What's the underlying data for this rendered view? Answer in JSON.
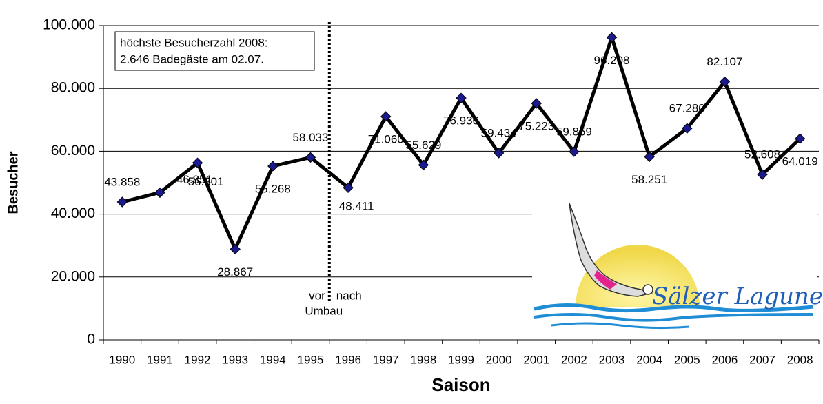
{
  "chart_data": {
    "type": "line",
    "x_label": "Saison",
    "y_label": "Besucher",
    "categories": [
      "1990",
      "1991",
      "1992",
      "1993",
      "1994",
      "1995",
      "1996",
      "1997",
      "1998",
      "1999",
      "2000",
      "2001",
      "2002",
      "2003",
      "2004",
      "2005",
      "2006",
      "2007",
      "2008"
    ],
    "series": [
      {
        "color": "#000000",
        "marker_color": "#1a1a8c",
        "values": [
          43858,
          46851,
          56301,
          28867,
          55268,
          58033,
          48411,
          71060,
          55629,
          76936,
          59434,
          75223,
          59859,
          96208,
          58251,
          67280,
          82107,
          52608,
          64019
        ],
        "value_labels": [
          "43.858",
          "46.851",
          "56.301",
          "28.867",
          "55.268",
          "58.033",
          "48.411",
          "71.060",
          "55.629",
          "76.936",
          "59.434",
          "75.223",
          "59.859",
          "96.208",
          "58.251",
          "67.280",
          "82.107",
          "52.608",
          "64.019"
        ]
      }
    ],
    "ylim": [
      0,
      100000
    ],
    "yticks": [
      0,
      {
        "value": 20000,
        "label": "20.000"
      },
      {
        "value": 40000,
        "label": "40.000"
      },
      {
        "value": 60000,
        "label": "60.000"
      },
      {
        "value": 80000,
        "label": "80.000"
      },
      {
        "value": 100000,
        "label": "100.000"
      }
    ],
    "grid": true,
    "annotations": {
      "box": [
        "höchste Besucherzahl 2008:",
        "2.646 Badegäste am 02.07."
      ],
      "before": "vor",
      "after": "nach",
      "divider": "Umbau"
    },
    "logo_text": "Sälzer Lagune"
  }
}
